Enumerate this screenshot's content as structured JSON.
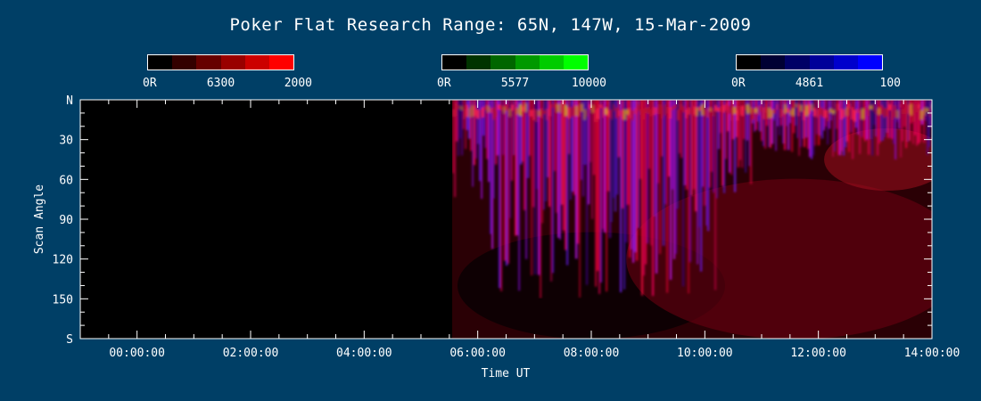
{
  "chart_data": {
    "type": "heatmap",
    "title": "Poker Flat Research Range: 65N, 147W, 15-Mar-2009",
    "xlabel": "Time UT",
    "ylabel": "Scan Angle",
    "x_ticks": [
      "00:00:00",
      "02:00:00",
      "04:00:00",
      "06:00:00",
      "08:00:00",
      "10:00:00",
      "12:00:00",
      "14:00:00"
    ],
    "y_ticks": [
      "N",
      "30",
      "60",
      "90",
      "120",
      "150",
      "S"
    ],
    "xlim_hours": [
      -1.0,
      14.0
    ],
    "ylim": [
      0,
      180
    ],
    "data_start_hours": 5.55,
    "colorbars": [
      {
        "name": "6300",
        "min_label": "0R",
        "max_label": "2000",
        "colors": [
          "#000000",
          "#330000",
          "#660000",
          "#990000",
          "#cc0000",
          "#ff0000"
        ]
      },
      {
        "name": "5577",
        "min_label": "0R",
        "max_label": "10000",
        "colors": [
          "#000000",
          "#003300",
          "#006600",
          "#009900",
          "#00cc00",
          "#00ff00"
        ]
      },
      {
        "name": "4861",
        "min_label": "0R",
        "max_label": "100",
        "colors": [
          "#000000",
          "#000033",
          "#000066",
          "#000099",
          "#0000cc",
          "#0000ff"
        ]
      }
    ]
  }
}
